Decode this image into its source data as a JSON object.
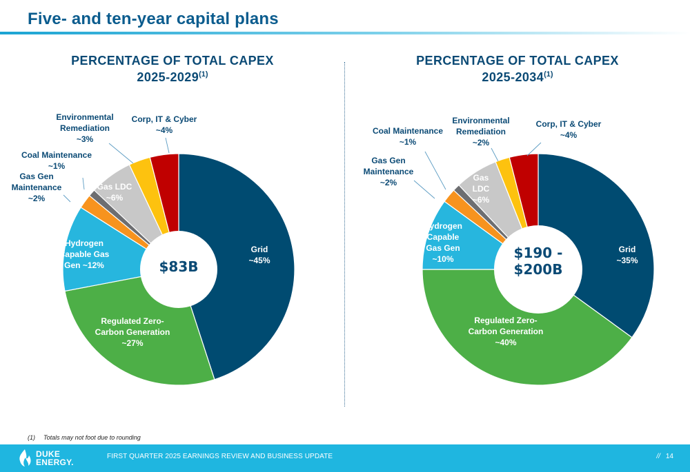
{
  "page": {
    "title": "Five- and ten-year capital plans",
    "footnote_number": "(1)",
    "footnote_text": "Totals may not foot due to rounding",
    "footer_text": "FIRST QUARTER 2025 EARNINGS REVIEW AND BUSINESS UPDATE",
    "footer_slashes": "//",
    "page_number": "14",
    "logo_line1": "DUKE",
    "logo_line2": "ENERGY."
  },
  "colors": {
    "title": "#0b5c8e",
    "chart_title": "#0b4a75",
    "footer": "#1fb6e0"
  },
  "chart_data": [
    {
      "type": "pie",
      "title_line1": "PERCENTAGE OF TOTAL CAPEX",
      "title_line2": "2025-2029",
      "title_sup": "(1)",
      "center_label": [
        "$83B"
      ],
      "categories": [
        "Grid",
        "Regulated Zero-Carbon Generation",
        "Hydrogen Capable Gas Gen",
        "Gas Gen Maintenance",
        "Coal Maintenance",
        "Gas LDC",
        "Environmental Remediation",
        "Corp, IT & Cyber"
      ],
      "values": [
        45,
        27,
        12,
        2,
        1,
        6,
        3,
        4
      ],
      "colors": [
        "#004b71",
        "#4daf47",
        "#27b6de",
        "#f7931e",
        "#6d6e71",
        "#c8c8c8",
        "#fdc20f",
        "#c00000"
      ],
      "labels": [
        [
          "Grid",
          "~45%"
        ],
        [
          "Regulated Zero-",
          "Carbon Generation",
          "~27%"
        ],
        [
          "Hydrogen",
          "Capable Gas",
          "Gen ~12%"
        ],
        [
          "Gas Gen",
          "Maintenance",
          "~2%"
        ],
        [
          "Coal Maintenance",
          "~1%"
        ],
        [
          "Gas LDC",
          "~6%"
        ],
        [
          "Environmental",
          "Remediation",
          "~3%"
        ],
        [
          "Corp, IT & Cyber",
          "~4%"
        ]
      ]
    },
    {
      "type": "pie",
      "title_line1": "PERCENTAGE OF TOTAL CAPEX",
      "title_line2": "2025-2034",
      "title_sup": "(1)",
      "center_label": [
        "$190 -",
        "$200B"
      ],
      "categories": [
        "Grid",
        "Regulated Zero-Carbon Generation",
        "Hydrogen Capable Gas Gen",
        "Gas Gen Maintenance",
        "Coal Maintenance",
        "Gas LDC",
        "Environmental Remediation",
        "Corp, IT & Cyber"
      ],
      "values": [
        35,
        40,
        10,
        2,
        1,
        6,
        2,
        4
      ],
      "colors": [
        "#004b71",
        "#4daf47",
        "#27b6de",
        "#f7931e",
        "#6d6e71",
        "#c8c8c8",
        "#fdc20f",
        "#c00000"
      ],
      "labels": [
        [
          "Grid",
          "~35%"
        ],
        [
          "Regulated Zero-",
          "Carbon Generation",
          "~40%"
        ],
        [
          "Hydrogen",
          "Capable",
          "Gas Gen",
          "~10%"
        ],
        [
          "Gas Gen",
          "Maintenance",
          "~2%"
        ],
        [
          "Coal Maintenance",
          "~1%"
        ],
        [
          "Gas",
          "LDC",
          "~6%"
        ],
        [
          "Environmental",
          "Remediation",
          "~2%"
        ],
        [
          "Corp, IT & Cyber",
          "~4%"
        ]
      ]
    }
  ]
}
